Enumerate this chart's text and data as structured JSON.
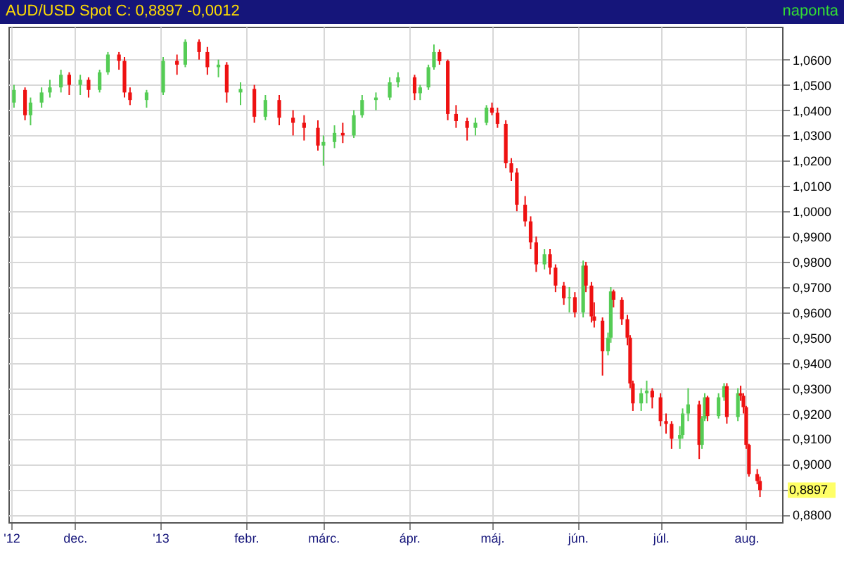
{
  "chart_data": {
    "type": "candlestick",
    "title": "AUD/USD Spot C: 0,8897 -0,0012",
    "annotations": [
      "naponta",
      "0,8897"
    ],
    "x": [
      "2012-11-09",
      "2012-11-13",
      "2012-11-15",
      "2012-11-19",
      "2012-11-22",
      "2012-11-26",
      "2012-11-29",
      "2012-12-03",
      "2012-12-06",
      "2012-12-10",
      "2012-12-13",
      "2012-12-17",
      "2012-12-19",
      "2012-12-21",
      "2012-12-27",
      "2013-01-02",
      "2013-01-07",
      "2013-01-10",
      "2013-01-15",
      "2013-01-18",
      "2013-01-22",
      "2013-01-25",
      "2013-01-30",
      "2013-02-04",
      "2013-02-08",
      "2013-02-13",
      "2013-02-18",
      "2013-02-22",
      "2013-02-27",
      "2013-03-01",
      "2013-03-05",
      "2013-03-08",
      "2013-03-12",
      "2013-03-15",
      "2013-03-20",
      "2013-03-25",
      "2013-03-28",
      "2013-04-03",
      "2013-04-05",
      "2013-04-08",
      "2013-04-10",
      "2013-04-12",
      "2013-04-15",
      "2013-04-18",
      "2013-04-22",
      "2013-04-25",
      "2013-04-29",
      "2013-05-01",
      "2013-05-03",
      "2013-05-06",
      "2013-05-08",
      "2013-05-10",
      "2013-05-13",
      "2013-05-15",
      "2013-05-17",
      "2013-05-20",
      "2013-05-22",
      "2013-05-24",
      "2013-05-27",
      "2013-05-29",
      "2013-05-31",
      "2013-06-03",
      "2013-06-04",
      "2013-06-06",
      "2013-06-07",
      "2013-06-10",
      "2013-06-12",
      "2013-06-13",
      "2013-06-14",
      "2013-06-17",
      "2013-06-19",
      "2013-06-20",
      "2013-06-21",
      "2013-06-24",
      "2013-06-26",
      "2013-06-28",
      "2013-07-01",
      "2013-07-03",
      "2013-07-05",
      "2013-07-08",
      "2013-07-09",
      "2013-07-11",
      "2013-07-15",
      "2013-07-16",
      "2013-07-17",
      "2013-07-18",
      "2013-07-22",
      "2013-07-24",
      "2013-07-25",
      "2013-07-29",
      "2013-07-30",
      "2013-07-31",
      "2013-08-01",
      "2013-08-02",
      "2013-08-05",
      "2013-08-06"
    ],
    "ohlc": [
      [
        1.043,
        1.05,
        1.041,
        1.048
      ],
      [
        1.048,
        1.049,
        1.036,
        1.038
      ],
      [
        1.038,
        1.045,
        1.034,
        1.043
      ],
      [
        1.043,
        1.049,
        1.041,
        1.047
      ],
      [
        1.047,
        1.052,
        1.045,
        1.049
      ],
      [
        1.049,
        1.056,
        1.047,
        1.054
      ],
      [
        1.054,
        1.055,
        1.046,
        1.05
      ],
      [
        1.05,
        1.054,
        1.046,
        1.052
      ],
      [
        1.052,
        1.053,
        1.045,
        1.048
      ],
      [
        1.048,
        1.056,
        1.047,
        1.055
      ],
      [
        1.055,
        1.063,
        1.054,
        1.062
      ],
      [
        1.062,
        1.063,
        1.056,
        1.0595
      ],
      [
        1.0595,
        1.061,
        1.045,
        1.047
      ],
      [
        1.047,
        1.049,
        1.042,
        1.044
      ],
      [
        1.044,
        1.048,
        1.041,
        1.047
      ],
      [
        1.047,
        1.061,
        1.046,
        1.0595
      ],
      [
        1.0595,
        1.062,
        1.054,
        1.058
      ],
      [
        1.058,
        1.068,
        1.057,
        1.067
      ],
      [
        1.067,
        1.068,
        1.06,
        1.063
      ],
      [
        1.063,
        1.065,
        1.054,
        1.057
      ],
      [
        1.057,
        1.06,
        1.053,
        1.058
      ],
      [
        1.058,
        1.059,
        1.043,
        1.047
      ],
      [
        1.047,
        1.051,
        1.042,
        1.0484
      ],
      [
        1.0484,
        1.05,
        1.035,
        1.0374
      ],
      [
        1.0374,
        1.046,
        1.036,
        1.044
      ],
      [
        1.044,
        1.046,
        1.034,
        1.037
      ],
      [
        1.037,
        1.04,
        1.03,
        1.035
      ],
      [
        1.035,
        1.038,
        1.028,
        1.033
      ],
      [
        1.033,
        1.036,
        1.024,
        1.026
      ],
      [
        1.026,
        1.03,
        1.018,
        1.0274
      ],
      [
        1.0274,
        1.034,
        1.025,
        1.031
      ],
      [
        1.031,
        1.035,
        1.027,
        1.03
      ],
      [
        1.03,
        1.04,
        1.029,
        1.038
      ],
      [
        1.038,
        1.046,
        1.037,
        1.044
      ],
      [
        1.044,
        1.047,
        1.04,
        1.045
      ],
      [
        1.045,
        1.053,
        1.044,
        1.051
      ],
      [
        1.051,
        1.055,
        1.049,
        1.053
      ],
      [
        1.053,
        1.054,
        1.044,
        1.0467
      ],
      [
        1.0467,
        1.05,
        1.044,
        1.049
      ],
      [
        1.049,
        1.058,
        1.048,
        1.057
      ],
      [
        1.057,
        1.066,
        1.056,
        1.063
      ],
      [
        1.063,
        1.064,
        1.058,
        1.0594
      ],
      [
        1.0594,
        1.06,
        1.036,
        1.0385
      ],
      [
        1.0385,
        1.042,
        1.033,
        1.0357
      ],
      [
        1.0357,
        1.037,
        1.028,
        1.033
      ],
      [
        1.033,
        1.037,
        1.03,
        1.035
      ],
      [
        1.035,
        1.042,
        1.034,
        1.041
      ],
      [
        1.041,
        1.043,
        1.038,
        1.039
      ],
      [
        1.039,
        1.041,
        1.033,
        1.0346
      ],
      [
        1.0346,
        1.036,
        1.017,
        1.019
      ],
      [
        1.019,
        1.021,
        1.012,
        1.0153
      ],
      [
        1.0153,
        1.017,
        1.0,
        1.0026
      ],
      [
        1.0026,
        1.006,
        0.994,
        0.996
      ],
      [
        0.996,
        0.998,
        0.985,
        0.9877
      ],
      [
        0.9877,
        0.99,
        0.976,
        0.979
      ],
      [
        0.979,
        0.985,
        0.977,
        0.983
      ],
      [
        0.983,
        0.985,
        0.975,
        0.9777
      ],
      [
        0.9777,
        0.979,
        0.968,
        0.9706
      ],
      [
        0.9706,
        0.972,
        0.963,
        0.9656
      ],
      [
        0.9656,
        0.97,
        0.96,
        0.966
      ],
      [
        0.966,
        0.968,
        0.958,
        0.96
      ],
      [
        0.96,
        0.9805,
        0.958,
        0.9785
      ],
      [
        0.9785,
        0.98,
        0.968,
        0.9706
      ],
      [
        0.9706,
        0.972,
        0.956,
        0.9584
      ],
      [
        0.9584,
        0.964,
        0.954,
        0.9567
      ],
      [
        0.9567,
        0.958,
        0.935,
        0.9446
      ],
      [
        0.9446,
        0.952,
        0.943,
        0.95
      ],
      [
        0.95,
        0.97,
        0.948,
        0.9683
      ],
      [
        0.9683,
        0.969,
        0.962,
        0.965
      ],
      [
        0.965,
        0.966,
        0.955,
        0.9573
      ],
      [
        0.9573,
        0.959,
        0.947,
        0.95
      ],
      [
        0.95,
        0.951,
        0.93,
        0.9319
      ],
      [
        0.9319,
        0.933,
        0.921,
        0.924
      ],
      [
        0.924,
        0.93,
        0.921,
        0.928
      ],
      [
        0.928,
        0.933,
        0.924,
        0.929
      ],
      [
        0.929,
        0.93,
        0.922,
        0.9264
      ],
      [
        0.9264,
        0.928,
        0.915,
        0.917
      ],
      [
        0.917,
        0.92,
        0.912,
        0.9159
      ],
      [
        0.9159,
        0.917,
        0.906,
        0.91
      ],
      [
        0.91,
        0.915,
        0.906,
        0.9115
      ],
      [
        0.9115,
        0.922,
        0.91,
        0.92
      ],
      [
        0.92,
        0.93,
        0.917,
        0.9236
      ],
      [
        0.9236,
        0.925,
        0.902,
        0.9076
      ],
      [
        0.9076,
        0.919,
        0.906,
        0.918
      ],
      [
        0.918,
        0.928,
        0.917,
        0.9264
      ],
      [
        0.9264,
        0.927,
        0.917,
        0.919
      ],
      [
        0.919,
        0.928,
        0.918,
        0.9264
      ],
      [
        0.9264,
        0.932,
        0.925,
        0.9308
      ],
      [
        0.9308,
        0.932,
        0.916,
        0.9186
      ],
      [
        0.9186,
        0.93,
        0.917,
        0.928
      ],
      [
        0.928,
        0.931,
        0.925,
        0.927
      ],
      [
        0.927,
        0.928,
        0.92,
        0.9225
      ],
      [
        0.9225,
        0.923,
        0.906,
        0.9076
      ],
      [
        0.9076,
        0.908,
        0.895,
        0.896
      ],
      [
        0.896,
        0.898,
        0.892,
        0.8933
      ],
      [
        0.8933,
        0.895,
        0.887,
        0.8897
      ]
    ],
    "colors": [
      "#55cc55",
      "#ee1111",
      "#55cc55",
      "#55cc55",
      "#55cc55",
      "#55cc55",
      "#ee1111",
      "#55cc55",
      "#ee1111",
      "#55cc55",
      "#55cc55",
      "#ee1111",
      "#ee1111",
      "#ee1111",
      "#55cc55",
      "#55cc55",
      "#ee1111",
      "#55cc55",
      "#ee1111",
      "#ee1111",
      "#55cc55",
      "#ee1111",
      "#55cc55",
      "#ee1111",
      "#55cc55",
      "#ee1111",
      "#ee1111",
      "#ee1111",
      "#ee1111",
      "#55cc55",
      "#55cc55",
      "#ee1111",
      "#55cc55",
      "#55cc55",
      "#55cc55",
      "#55cc55",
      "#55cc55",
      "#ee1111",
      "#55cc55",
      "#55cc55",
      "#55cc55",
      "#ee1111",
      "#ee1111",
      "#ee1111",
      "#ee1111",
      "#55cc55",
      "#55cc55",
      "#ee1111",
      "#ee1111",
      "#ee1111",
      "#ee1111",
      "#ee1111",
      "#ee1111",
      "#ee1111",
      "#ee1111",
      "#55cc55",
      "#ee1111",
      "#ee1111",
      "#ee1111",
      "#55cc55",
      "#ee1111",
      "#55cc55",
      "#ee1111",
      "#ee1111",
      "#ee1111",
      "#ee1111",
      "#55cc55",
      "#55cc55",
      "#ee1111",
      "#ee1111",
      "#ee1111",
      "#ee1111",
      "#ee1111",
      "#55cc55",
      "#55cc55",
      "#ee1111",
      "#ee1111",
      "#ee1111",
      "#ee1111",
      "#55cc55",
      "#55cc55",
      "#55cc55",
      "#ee1111",
      "#55cc55",
      "#55cc55",
      "#ee1111",
      "#55cc55",
      "#55cc55",
      "#ee1111",
      "#55cc55",
      "#ee1111",
      "#ee1111",
      "#ee1111",
      "#ee1111",
      "#ee1111",
      "#ee1111"
    ],
    "xlim": [
      "2012-11-07",
      "2013-08-14"
    ],
    "xticks": [
      {
        "value": "2012-11-08",
        "label": "'12"
      },
      {
        "value": "2012-12-01",
        "label": "dec."
      },
      {
        "value": "2013-01-01",
        "label": "'13"
      },
      {
        "value": "2013-02-01",
        "label": "febr."
      },
      {
        "value": "2013-03-01",
        "label": "márc."
      },
      {
        "value": "2013-04-01",
        "label": "ápr."
      },
      {
        "value": "2013-05-01",
        "label": "máj."
      },
      {
        "value": "2013-06-01",
        "label": "jún."
      },
      {
        "value": "2013-07-01",
        "label": "júl."
      },
      {
        "value": "2013-08-01",
        "label": "aug."
      }
    ],
    "ylim": [
      0.877,
      1.073
    ],
    "yticks": [
      {
        "value": 0.88,
        "label": "0,8800"
      },
      {
        "value": 0.89,
        "label": null
      },
      {
        "value": 0.9,
        "label": "0,9000"
      },
      {
        "value": 0.91,
        "label": "0,9100"
      },
      {
        "value": 0.92,
        "label": "0,9200"
      },
      {
        "value": 0.93,
        "label": "0,9300"
      },
      {
        "value": 0.94,
        "label": "0,9400"
      },
      {
        "value": 0.95,
        "label": "0,9500"
      },
      {
        "value": 0.96,
        "label": "0,9600"
      },
      {
        "value": 0.97,
        "label": "0,9700"
      },
      {
        "value": 0.98,
        "label": "0,9800"
      },
      {
        "value": 0.99,
        "label": "0,9900"
      },
      {
        "value": 1.0,
        "label": "1,0000"
      },
      {
        "value": 1.01,
        "label": "1,0100"
      },
      {
        "value": 1.02,
        "label": "1,0200"
      },
      {
        "value": 1.03,
        "label": "1,0300"
      },
      {
        "value": 1.04,
        "label": "1,0400"
      },
      {
        "value": 1.05,
        "label": "1,0500"
      },
      {
        "value": 1.06,
        "label": "1,0600"
      }
    ],
    "grid": true
  }
}
